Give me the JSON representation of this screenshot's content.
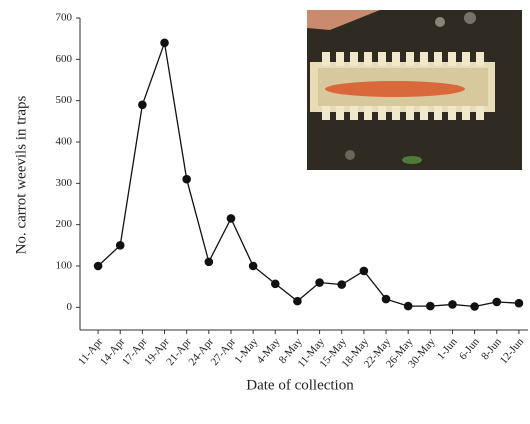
{
  "chart_data": {
    "type": "line",
    "x_label": "Date of collection",
    "y_label": "No. carrot weevils in traps",
    "categories": [
      "11-Apr",
      "14-Apr",
      "17-Apr",
      "19-Apr",
      "21-Apr",
      "24-Apr",
      "27-Apr",
      "1-May",
      "4-May",
      "8-May",
      "11-May",
      "15-May",
      "18-May",
      "22-May",
      "26-May",
      "30-May",
      "1-Jun",
      "6-Jun",
      "8-Jun",
      "12-Jun"
    ],
    "values": [
      100,
      150,
      490,
      640,
      310,
      110,
      215,
      100,
      57,
      15,
      60,
      55,
      88,
      20,
      3,
      3,
      7,
      2,
      13,
      10
    ],
    "color": "#111111",
    "ylim": [
      -50,
      700
    ],
    "yticks": [
      0,
      100,
      200,
      300,
      400,
      500,
      600,
      700
    ]
  }
}
